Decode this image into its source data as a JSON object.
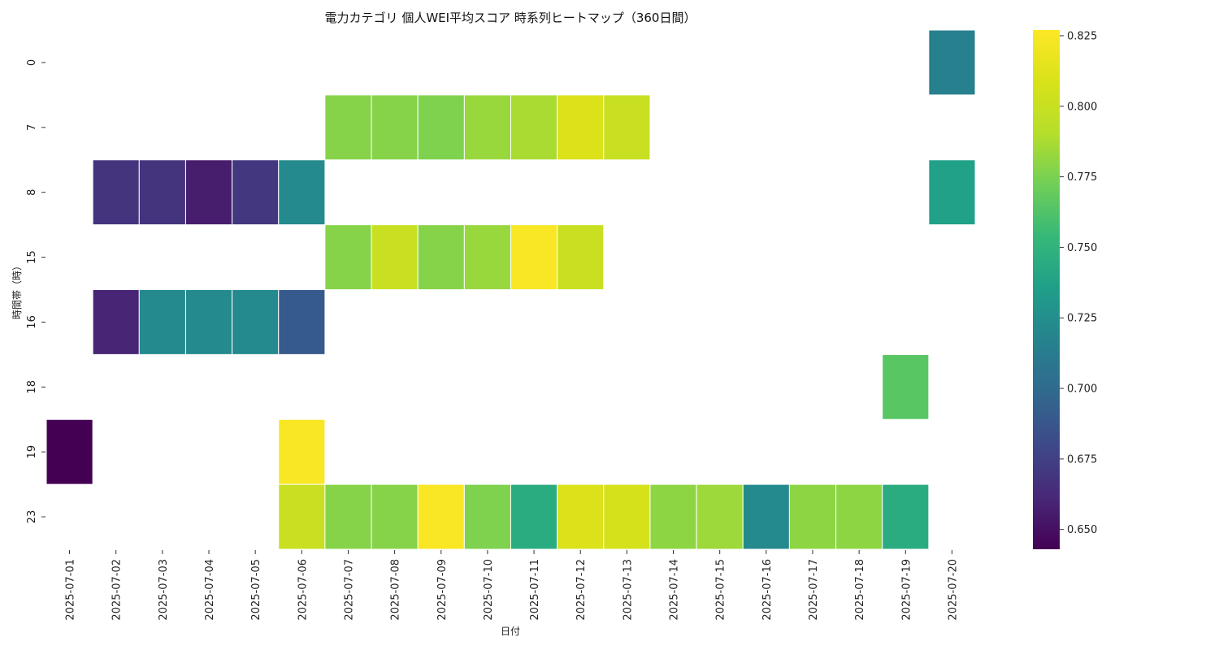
{
  "chart_data": {
    "type": "heatmap",
    "title": "電力カテゴリ 個人WEI平均スコア 時系列ヒートマップ（360日間）",
    "xlabel": "日付",
    "ylabel": "時間帯（時）",
    "x_categories": [
      "2025-07-01",
      "2025-07-02",
      "2025-07-03",
      "2025-07-04",
      "2025-07-05",
      "2025-07-06",
      "2025-07-07",
      "2025-07-08",
      "2025-07-09",
      "2025-07-10",
      "2025-07-11",
      "2025-07-12",
      "2025-07-13",
      "2025-07-14",
      "2025-07-15",
      "2025-07-16",
      "2025-07-17",
      "2025-07-18",
      "2025-07-19",
      "2025-07-20"
    ],
    "y_categories": [
      "0",
      "7",
      "8",
      "15",
      "16",
      "18",
      "19",
      "23"
    ],
    "colormap": "viridis",
    "vmin": 0.643,
    "vmax": 0.827,
    "colorbar_ticks": [
      "0.650",
      "0.675",
      "0.700",
      "0.725",
      "0.750",
      "0.775",
      "0.800",
      "0.825"
    ],
    "cells": [
      {
        "x": "2025-07-20",
        "y": "0",
        "value": 0.715
      },
      {
        "x": "2025-07-07",
        "y": "7",
        "value": 0.778
      },
      {
        "x": "2025-07-08",
        "y": "7",
        "value": 0.778
      },
      {
        "x": "2025-07-09",
        "y": "7",
        "value": 0.776
      },
      {
        "x": "2025-07-10",
        "y": "7",
        "value": 0.783
      },
      {
        "x": "2025-07-11",
        "y": "7",
        "value": 0.787
      },
      {
        "x": "2025-07-12",
        "y": "7",
        "value": 0.81
      },
      {
        "x": "2025-07-13",
        "y": "7",
        "value": 0.8
      },
      {
        "x": "2025-07-02",
        "y": "8",
        "value": 0.668
      },
      {
        "x": "2025-07-03",
        "y": "8",
        "value": 0.668
      },
      {
        "x": "2025-07-04",
        "y": "8",
        "value": 0.656
      },
      {
        "x": "2025-07-05",
        "y": "8",
        "value": 0.67
      },
      {
        "x": "2025-07-06",
        "y": "8",
        "value": 0.722
      },
      {
        "x": "2025-07-20",
        "y": "8",
        "value": 0.737
      },
      {
        "x": "2025-07-07",
        "y": "15",
        "value": 0.778
      },
      {
        "x": "2025-07-08",
        "y": "15",
        "value": 0.8
      },
      {
        "x": "2025-07-09",
        "y": "15",
        "value": 0.778
      },
      {
        "x": "2025-07-10",
        "y": "15",
        "value": 0.783
      },
      {
        "x": "2025-07-11",
        "y": "15",
        "value": 0.825
      },
      {
        "x": "2025-07-12",
        "y": "15",
        "value": 0.8
      },
      {
        "x": "2025-07-02",
        "y": "16",
        "value": 0.66
      },
      {
        "x": "2025-07-03",
        "y": "16",
        "value": 0.722
      },
      {
        "x": "2025-07-04",
        "y": "16",
        "value": 0.722
      },
      {
        "x": "2025-07-05",
        "y": "16",
        "value": 0.722
      },
      {
        "x": "2025-07-06",
        "y": "16",
        "value": 0.69
      },
      {
        "x": "2025-07-19",
        "y": "18",
        "value": 0.765
      },
      {
        "x": "2025-07-01",
        "y": "19",
        "value": 0.643
      },
      {
        "x": "2025-07-06",
        "y": "19",
        "value": 0.825
      },
      {
        "x": "2025-07-06",
        "y": "23",
        "value": 0.8
      },
      {
        "x": "2025-07-07",
        "y": "23",
        "value": 0.778
      },
      {
        "x": "2025-07-08",
        "y": "23",
        "value": 0.778
      },
      {
        "x": "2025-07-09",
        "y": "23",
        "value": 0.825
      },
      {
        "x": "2025-07-10",
        "y": "23",
        "value": 0.776
      },
      {
        "x": "2025-07-11",
        "y": "23",
        "value": 0.745
      },
      {
        "x": "2025-07-12",
        "y": "23",
        "value": 0.81
      },
      {
        "x": "2025-07-13",
        "y": "23",
        "value": 0.807
      },
      {
        "x": "2025-07-14",
        "y": "23",
        "value": 0.78
      },
      {
        "x": "2025-07-15",
        "y": "23",
        "value": 0.784
      },
      {
        "x": "2025-07-16",
        "y": "23",
        "value": 0.722
      },
      {
        "x": "2025-07-17",
        "y": "23",
        "value": 0.78
      },
      {
        "x": "2025-07-18",
        "y": "23",
        "value": 0.78
      },
      {
        "x": "2025-07-19",
        "y": "23",
        "value": 0.745
      }
    ]
  }
}
